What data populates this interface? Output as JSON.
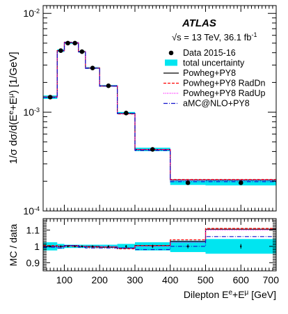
{
  "chart_data": [
    {
      "type": "line",
      "panel": "main",
      "atlas_label": "ATLAS",
      "energy_label": "√s = 13 TeV, 36.1 fb",
      "lumi_unit_sup": "-1",
      "ylabel_parts": [
        "1/σ dσ/d(E",
        "e",
        "+E",
        "μ",
        ") [1/GeV]"
      ],
      "y_scale": "log",
      "ylim": [
        0.0001,
        0.012
      ],
      "xlim": [
        40,
        700
      ],
      "y_tick_labels": [
        {
          "base": "10",
          "exp": "-2"
        },
        {
          "base": "10",
          "exp": "-3"
        },
        {
          "base": "10",
          "exp": "-4"
        }
      ],
      "legend_placement": "top-right",
      "bin_edges": [
        40,
        80,
        100,
        120,
        140,
        160,
        200,
        250,
        300,
        400,
        500,
        700
      ],
      "series": [
        {
          "name": "Data 2015-16",
          "style": "points",
          "color": "#000000",
          "x": [
            60,
            90,
            110,
            130,
            150,
            180,
            225,
            275,
            350,
            450,
            600
          ],
          "y": [
            0.00142,
            0.0042,
            0.005,
            0.005,
            0.0041,
            0.0028,
            0.00185,
            0.00098,
            0.00042,
            0.000193,
            0.000193
          ]
        },
        {
          "name": "total uncertainty",
          "style": "band",
          "color": "#00e5f0",
          "values": [
            0.00142,
            0.0042,
            0.005,
            0.005,
            0.0041,
            0.0028,
            0.00185,
            0.00098,
            0.00042,
            0.000193,
            0.000193
          ],
          "rel_err": [
            0.04,
            0.03,
            0.02,
            0.02,
            0.02,
            0.02,
            0.02,
            0.025,
            0.04,
            0.05,
            0.06
          ]
        },
        {
          "name": "Powheg+PY8",
          "style": "step",
          "color": "#000000",
          "dash": "",
          "values": [
            0.00142,
            0.0042,
            0.0051,
            0.00505,
            0.0041,
            0.0028,
            0.00184,
            0.00097,
            0.00042,
            0.000206,
            0.000206
          ]
        },
        {
          "name": "Powheg+PY8 RadDn",
          "style": "step",
          "color": "#ff0000",
          "dash": "4,2",
          "values": [
            0.00143,
            0.0042,
            0.00505,
            0.005,
            0.0041,
            0.0028,
            0.00184,
            0.00096,
            0.00042,
            0.000208,
            0.000208
          ]
        },
        {
          "name": "Powheg+PY8 RadUp",
          "style": "step",
          "color": "#ff00ff",
          "dash": "1,1.5",
          "values": [
            0.00142,
            0.00418,
            0.0051,
            0.00505,
            0.0041,
            0.0028,
            0.00185,
            0.00097,
            0.00042,
            0.000205,
            0.000205
          ]
        },
        {
          "name": "aMC@NLO+PY8",
          "style": "step",
          "color": "#1010cc",
          "dash": "6,2,1,2",
          "values": [
            0.00141,
            0.00418,
            0.0051,
            0.00505,
            0.00408,
            0.00278,
            0.00183,
            0.00097,
            0.00041,
            0.000198,
            0.000198
          ]
        }
      ]
    },
    {
      "type": "line",
      "panel": "ratio",
      "ylabel": "MC / data",
      "ylim": [
        0.85,
        1.17
      ],
      "y_ticks": [
        0.9,
        1,
        1.1
      ],
      "y_tick_labels": [
        "0.9",
        "1",
        "1.1"
      ],
      "xlim": [
        40,
        700
      ],
      "x_ticks": [
        100,
        200,
        300,
        400,
        500,
        600,
        700
      ],
      "x_tick_labels": [
        "100",
        "200",
        "300",
        "400",
        "500",
        "600",
        "700"
      ],
      "xlabel_parts": [
        "Dilepton E",
        "e",
        "+E",
        "μ",
        " [GeV]"
      ],
      "bin_edges": [
        40,
        80,
        100,
        120,
        140,
        160,
        200,
        250,
        300,
        400,
        500,
        700
      ],
      "band": {
        "color": "#00e5f0",
        "low": [
          0.975,
          0.985,
          0.99,
          0.99,
          0.99,
          0.99,
          0.99,
          0.985,
          0.975,
          0.965,
          0.955
        ],
        "high": [
          1.025,
          1.015,
          1.01,
          1.01,
          1.01,
          1.01,
          1.01,
          1.015,
          1.025,
          1.035,
          1.045
        ]
      },
      "data_errors": [
        0.006,
        0.006,
        0.006,
        0.006,
        0.006,
        0.006,
        0.006,
        0.008,
        0.01,
        0.012,
        0.014
      ],
      "series": [
        {
          "name": "Powheg+PY8",
          "color": "#000000",
          "dash": "",
          "values": [
            1.0,
            1.0,
            1.005,
            1.005,
            1.0,
            1.0,
            0.995,
            0.99,
            1.005,
            1.03,
            1.105
          ]
        },
        {
          "name": "Powheg+PY8 RadDn",
          "color": "#ff0000",
          "dash": "4,2",
          "values": [
            1.005,
            1.0,
            1.0,
            1.0,
            1.0,
            0.995,
            0.995,
            0.985,
            1.005,
            1.04,
            1.11
          ]
        },
        {
          "name": "Powheg+PY8 RadUp",
          "color": "#ff00ff",
          "dash": "1,1.5",
          "values": [
            1.0,
            0.995,
            1.005,
            1.005,
            1.0,
            1.0,
            1.0,
            0.99,
            1.0,
            1.025,
            1.1
          ]
        },
        {
          "name": "aMC@NLO+PY8",
          "color": "#1010cc",
          "dash": "6,2,1,2",
          "values": [
            0.995,
            0.99,
            1.005,
            1.005,
            0.995,
            0.99,
            0.99,
            0.99,
            0.98,
            1.0,
            1.06
          ]
        }
      ]
    }
  ]
}
